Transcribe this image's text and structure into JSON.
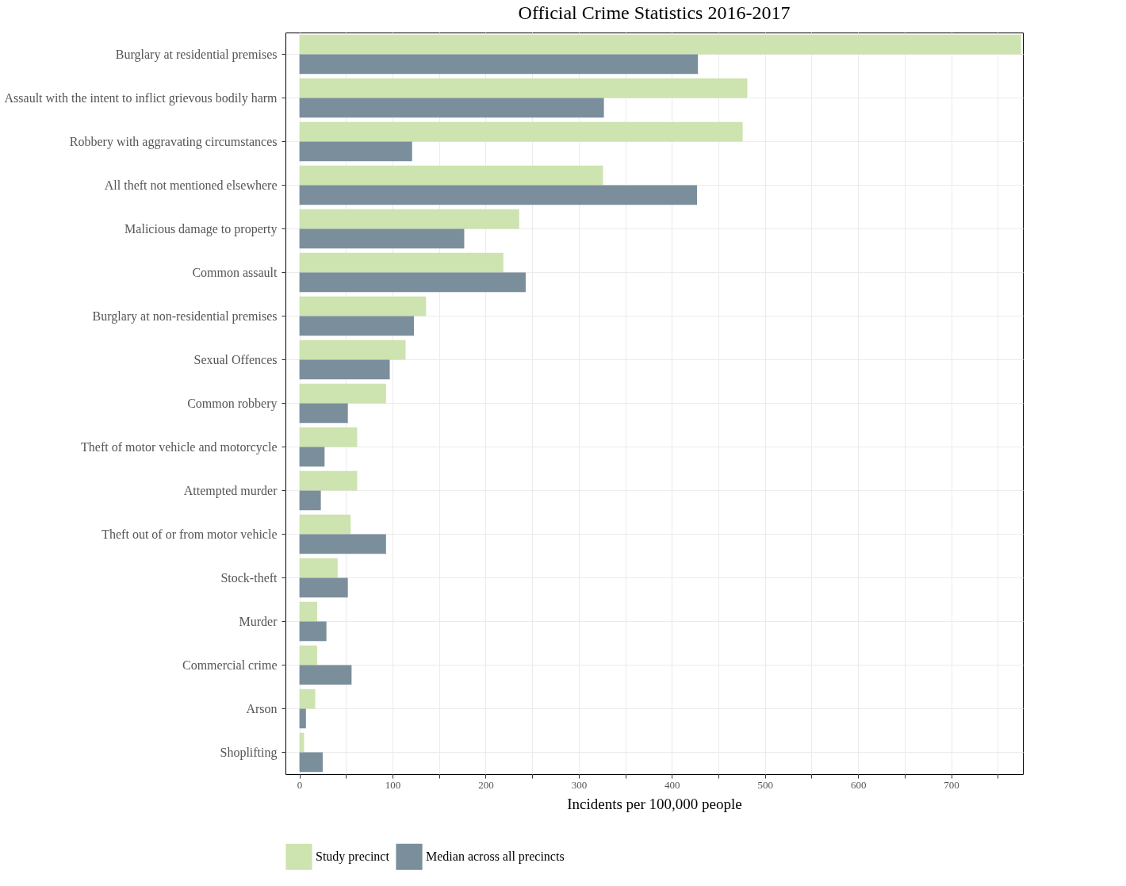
{
  "chart_data": {
    "type": "bar",
    "orientation": "horizontal",
    "title": "Official Crime Statistics 2016-2017",
    "xlabel": "Incidents per 100,000 people",
    "categories": [
      "Burglary at residential premises",
      "Assault with the intent to inflict grievous bodily harm",
      "Robbery with aggravating circumstances",
      "All theft not mentioned elsewhere",
      "Malicious damage to property",
      "Common assault",
      "Burglary at non-residential premises",
      "Sexual Offences",
      "Common robbery",
      "Theft of motor vehicle and motorcycle",
      "Attempted murder",
      "Theft out of or from motor vehicle",
      "Stock-theft",
      "Murder",
      "Commercial crime",
      "Arson",
      "Shoplifting"
    ],
    "series": [
      {
        "name": "Study precinct",
        "color": "#cde3b0",
        "values": [
          775,
          481,
          476,
          326,
          236,
          219,
          136,
          114,
          93,
          62,
          62,
          55,
          41,
          19,
          19,
          17,
          5
        ]
      },
      {
        "name": "Median across all precincts",
        "color": "#7b8e9c",
        "values": [
          428,
          327,
          121,
          427,
          177,
          243,
          123,
          97,
          52,
          27,
          23,
          93,
          52,
          29,
          56,
          7,
          25
        ]
      }
    ],
    "xlim": [
      -15,
      777
    ],
    "xticks": [
      0,
      {
        "value": 50,
        "label": null
      },
      100,
      {
        "value": 150,
        "label": null
      },
      200,
      {
        "value": 250,
        "label": null
      },
      300,
      {
        "value": 350,
        "label": null
      },
      400,
      {
        "value": 450,
        "label": null
      },
      500,
      {
        "value": 550,
        "label": null
      },
      600,
      {
        "value": 650,
        "label": null
      },
      700,
      {
        "value": 750,
        "label": null
      }
    ],
    "grid": true,
    "legend": "bottom"
  }
}
